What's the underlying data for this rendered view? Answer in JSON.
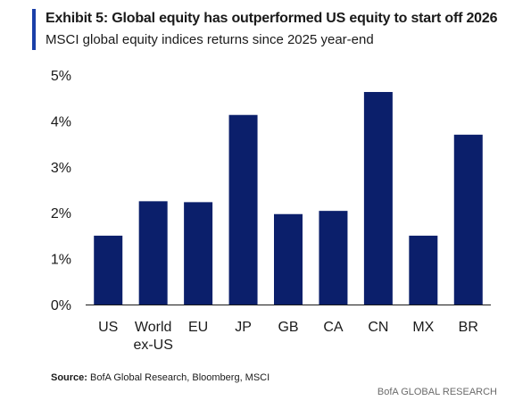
{
  "header": {
    "title": "Exhibit 5: Global equity has outperformed US equity to start off 2026",
    "subtitle": "MSCI global equity indices returns since 2025 year-end"
  },
  "footer": {
    "source_label": "Source:",
    "source_text": "BofA Global Research, Bloomberg, MSCI",
    "brand": "BofA GLOBAL RESEARCH"
  },
  "colors": {
    "bar": "#0b1f6b",
    "accent": "#1a3fa8"
  },
  "chart_data": {
    "type": "bar",
    "title": "Exhibit 5: Global equity has outperformed US equity to start off 2026",
    "subtitle": "MSCI global equity indices returns since 2025 year-end",
    "categories": [
      [
        "US"
      ],
      [
        "World",
        "ex-US"
      ],
      [
        "EU"
      ],
      [
        "JP"
      ],
      [
        "GB"
      ],
      [
        "CA"
      ],
      [
        "CN"
      ],
      [
        "MX"
      ],
      [
        "BR"
      ]
    ],
    "values": [
      1.5,
      2.25,
      2.23,
      4.13,
      1.97,
      2.04,
      4.63,
      1.5,
      3.7
    ],
    "unit": "%",
    "ylim": [
      0,
      5
    ],
    "yticks": [
      "0%",
      "1%",
      "2%",
      "3%",
      "4%",
      "5%"
    ],
    "grid": false,
    "legend": "none"
  }
}
